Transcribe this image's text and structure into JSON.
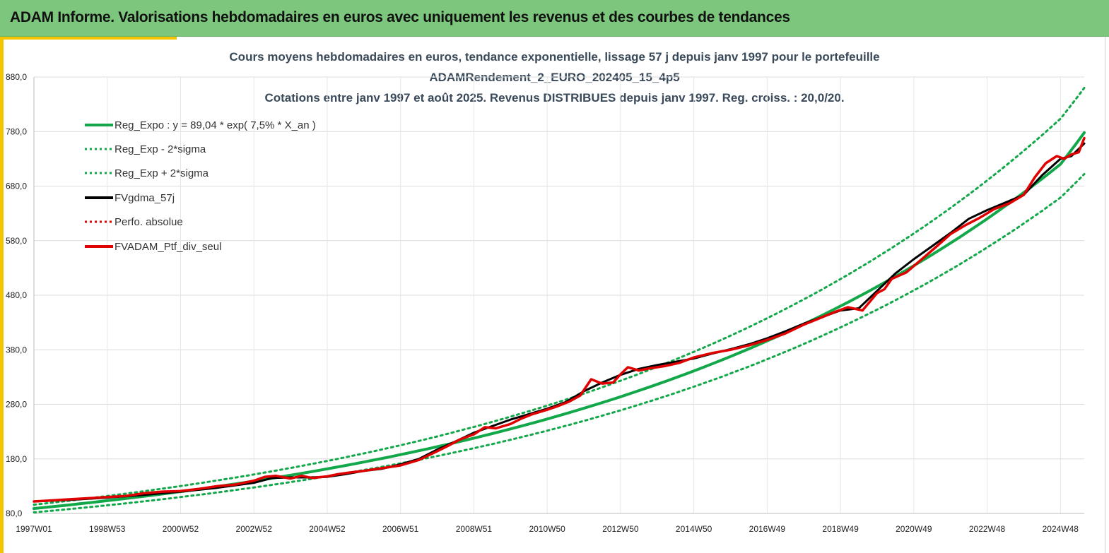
{
  "banner": {
    "title": "ADAM Informe. Valorisations hebdomadaires en euros avec uniquement les revenus et des courbes de tendances"
  },
  "colors": {
    "banner_bg": "#7dc67d",
    "accent": "#f5c400",
    "trend": "#12a84a",
    "smooth": "#000000",
    "perf": "#e00000"
  },
  "chart_data": {
    "type": "line",
    "title_lines": [
      "Cours moyens hebdomadaires  en euros, tendance exponentielle, lissage 57 j depuis janv 1997 pour le portefeuille",
      "ADAMRendement_2_EURO_202405_15_4p5",
      "Cotations  entre janv 1997 et août 2025. Revenus DISTRIBUES depuis janv 1997. Reg. croiss. : 20,0/20."
    ],
    "x_tick_labels": [
      "1997W01",
      "1998W53",
      "2000W52",
      "2002W52",
      "2004W52",
      "2006W51",
      "2008W51",
      "2010W50",
      "2012W50",
      "2014W50",
      "2016W49",
      "2018W49",
      "2020W49",
      "2022W48",
      "2024W48"
    ],
    "x_tick_years": [
      1997.0,
      1999.0,
      2001.0,
      2003.0,
      2005.0,
      2007.0,
      2009.0,
      2011.0,
      2013.0,
      2015.0,
      2017.0,
      2019.0,
      2021.0,
      2023.0,
      2025.0
    ],
    "xlim": [
      1997.0,
      2025.65
    ],
    "ylim": [
      80,
      880
    ],
    "y_ticks": [
      80,
      180,
      280,
      380,
      480,
      580,
      680,
      780,
      880
    ],
    "y_tick_labels": [
      "80,0",
      "180,0",
      "280,0",
      "380,0",
      "480,0",
      "580,0",
      "680,0",
      "780,0",
      "880,0"
    ],
    "grid": true,
    "legend_position": "top-left",
    "legend": [
      {
        "name": "Reg_Expo : y = 89,04 * exp( 7,5% *  X_an )",
        "color": "#12a84a",
        "style": "solid"
      },
      {
        "name": "Reg_Exp - 2*sigma",
        "color": "#12a84a",
        "style": "dotted"
      },
      {
        "name": "Reg_Exp + 2*sigma",
        "color": "#12a84a",
        "style": "dotted"
      },
      {
        "name": "FVgdma_57j",
        "color": "#000000",
        "style": "solid"
      },
      {
        "name": "Perfo. absolue",
        "color": "#e00000",
        "style": "dotted"
      },
      {
        "name": "FVADAM_Ptf_div_seul",
        "color": "#e00000",
        "style": "solid"
      }
    ],
    "series": [
      {
        "name": "Reg_Expo : y = 89,04 * exp( 7,5% *  X_an )",
        "x": [
          1997.0,
          1999.0,
          2001.0,
          2003.0,
          2005.0,
          2007.0,
          2009.0,
          2011.0,
          2013.0,
          2015.0,
          2017.0,
          2019.0,
          2021.0,
          2023.0,
          2025.0,
          2025.65
        ],
        "values": [
          89.0,
          103.4,
          120.0,
          139.3,
          161.7,
          187.8,
          218.0,
          253.1,
          293.9,
          341.2,
          396.2,
          460.0,
          534.1,
          620.1,
          720.0,
          778.0
        ]
      },
      {
        "name": "Reg_Exp - 2*sigma",
        "x": [
          1997.0,
          1999.0,
          2001.0,
          2003.0,
          2005.0,
          2007.0,
          2009.0,
          2011.0,
          2013.0,
          2015.0,
          2017.0,
          2019.0,
          2021.0,
          2023.0,
          2025.0,
          2025.65
        ],
        "values": [
          82.0,
          95.0,
          110.0,
          127.6,
          148.1,
          171.9,
          199.6,
          231.7,
          269.0,
          312.3,
          362.6,
          421.0,
          488.8,
          567.5,
          658.9,
          702.0
        ]
      },
      {
        "name": "Reg_Exp + 2*sigma",
        "x": [
          1997.0,
          1999.0,
          2001.0,
          2003.0,
          2005.0,
          2007.0,
          2009.0,
          2011.0,
          2013.0,
          2015.0,
          2017.0,
          2019.0,
          2021.0,
          2023.0,
          2025.0,
          2025.65
        ],
        "values": [
          96.0,
          112.0,
          130.2,
          151.5,
          176.2,
          205.0,
          238.6,
          277.7,
          323.2,
          376.2,
          437.8,
          509.6,
          593.1,
          690.3,
          803.4,
          860.0
        ]
      },
      {
        "name": "FVgdma_57j",
        "x": [
          1997.0,
          1998.0,
          1999.0,
          2000.0,
          2001.0,
          2002.0,
          2003.0,
          2003.5,
          2004.0,
          2004.5,
          2005.0,
          2005.5,
          2006.0,
          2006.5,
          2007.0,
          2007.5,
          2008.0,
          2008.5,
          2009.0,
          2009.5,
          2010.0,
          2010.5,
          2011.0,
          2011.5,
          2012.0,
          2012.5,
          2013.0,
          2013.5,
          2014.0,
          2014.5,
          2015.0,
          2015.5,
          2016.0,
          2016.5,
          2017.0,
          2017.5,
          2018.0,
          2018.5,
          2019.0,
          2019.5,
          2020.0,
          2020.5,
          2021.0,
          2021.5,
          2022.0,
          2022.5,
          2023.0,
          2023.5,
          2024.0,
          2024.5,
          2025.0,
          2025.3,
          2025.65
        ],
        "values": [
          102,
          105,
          109,
          114,
          120,
          127,
          136,
          145,
          146,
          146,
          147,
          152,
          158,
          162,
          170,
          180,
          197,
          212,
          228,
          240,
          252,
          262,
          272,
          284,
          304,
          320,
          334,
          345,
          352,
          358,
          364,
          373,
          381,
          390,
          401,
          414,
          428,
          440,
          452,
          456,
          488,
          520,
          546,
          570,
          594,
          620,
          636,
          650,
          664,
          700,
          730,
          735,
          758
        ]
      },
      {
        "name": "FVADAM_Ptf_div_seul",
        "x": [
          1997.0,
          1997.5,
          1998.0,
          1998.5,
          1999.0,
          1999.5,
          2000.0,
          2000.5,
          2001.0,
          2001.5,
          2002.0,
          2002.5,
          2003.0,
          2003.3,
          2003.6,
          2004.0,
          2004.3,
          2004.6,
          2005.0,
          2005.3,
          2005.6,
          2006.0,
          2006.5,
          2007.0,
          2007.5,
          2008.0,
          2008.3,
          2008.6,
          2009.0,
          2009.3,
          2009.6,
          2010.0,
          2010.3,
          2010.6,
          2011.0,
          2011.3,
          2011.6,
          2011.9,
          2012.2,
          2012.5,
          2012.8,
          2013.0,
          2013.2,
          2013.5,
          2013.8,
          2014.2,
          2014.6,
          2015.0,
          2015.5,
          2016.0,
          2016.5,
          2017.0,
          2017.5,
          2018.0,
          2018.4,
          2018.8,
          2019.2,
          2019.6,
          2020.0,
          2020.2,
          2020.4,
          2020.8,
          2021.2,
          2021.6,
          2022.0,
          2022.4,
          2022.8,
          2023.2,
          2023.6,
          2024.0,
          2024.3,
          2024.6,
          2024.9,
          2025.1,
          2025.3,
          2025.5,
          2025.65
        ],
        "values": [
          102,
          104,
          106,
          108,
          110,
          112,
          117,
          120,
          121,
          125,
          130,
          133,
          140,
          147,
          149,
          144,
          149,
          145,
          148,
          152,
          155,
          158,
          163,
          168,
          178,
          194,
          204,
          215,
          225,
          238,
          236,
          244,
          254,
          262,
          270,
          277,
          285,
          296,
          326,
          318,
          320,
          335,
          348,
          342,
          346,
          350,
          356,
          366,
          374,
          380,
          388,
          398,
          410,
          426,
          437,
          448,
          458,
          452,
          484,
          491,
          510,
          522,
          545,
          568,
          592,
          608,
          622,
          638,
          648,
          664,
          696,
          722,
          735,
          730,
          738,
          742,
          768
        ]
      }
    ]
  }
}
